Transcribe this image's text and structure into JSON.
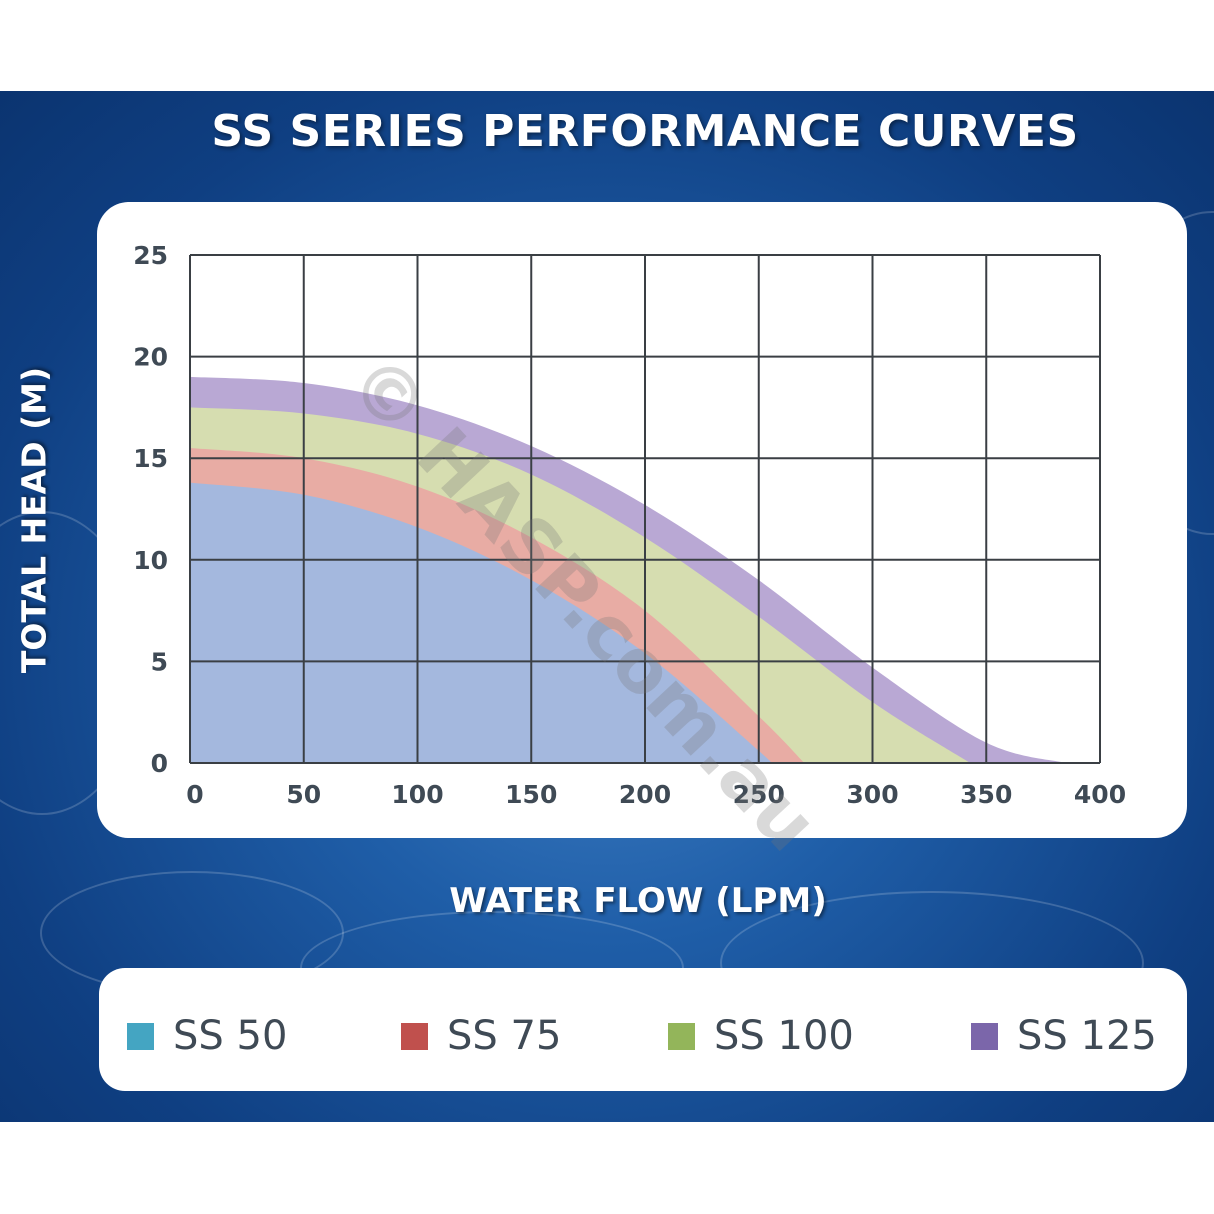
{
  "title": "SS SERIES PERFORMANCE CURVES",
  "watermark": "© HASP.com.au",
  "chart_data": {
    "type": "area",
    "title": "SS SERIES PERFORMANCE CURVES",
    "xlabel": "WATER FLOW (LPM)",
    "ylabel": "TOTAL HEAD (M)",
    "xlim": [
      0,
      400
    ],
    "ylim": [
      0,
      25
    ],
    "x_ticks": [
      0,
      50,
      100,
      150,
      200,
      250,
      300,
      350,
      400
    ],
    "y_ticks": [
      0,
      5,
      10,
      15,
      20,
      25
    ],
    "grid": true,
    "legend_position": "bottom",
    "series": [
      {
        "name": "SS 125",
        "color": "#b9a8d4",
        "legend_color": "#7b66aa",
        "x": [
          0,
          50,
          100,
          150,
          200,
          250,
          300,
          350,
          385
        ],
        "y": [
          19.0,
          18.7,
          17.6,
          15.6,
          12.7,
          9.0,
          4.7,
          1.0,
          0
        ]
      },
      {
        "name": "SS 100",
        "color": "#d6ddb0",
        "legend_color": "#93b55a",
        "x": [
          0,
          50,
          100,
          150,
          200,
          250,
          300,
          343
        ],
        "y": [
          17.5,
          17.2,
          16.2,
          14.2,
          11.1,
          7.2,
          3.0,
          0
        ]
      },
      {
        "name": "SS 75",
        "color": "#e8aca4",
        "legend_color": "#c0504d",
        "x": [
          0,
          50,
          100,
          150,
          200,
          250,
          270
        ],
        "y": [
          15.5,
          15.0,
          13.6,
          11.1,
          7.5,
          2.3,
          0
        ]
      },
      {
        "name": "SS 50",
        "color": "#a4b8de",
        "legend_color": "#44a5c2",
        "x": [
          0,
          50,
          100,
          150,
          200,
          250,
          255
        ],
        "y": [
          13.8,
          13.2,
          11.6,
          9.0,
          5.4,
          0.6,
          0
        ]
      }
    ]
  }
}
